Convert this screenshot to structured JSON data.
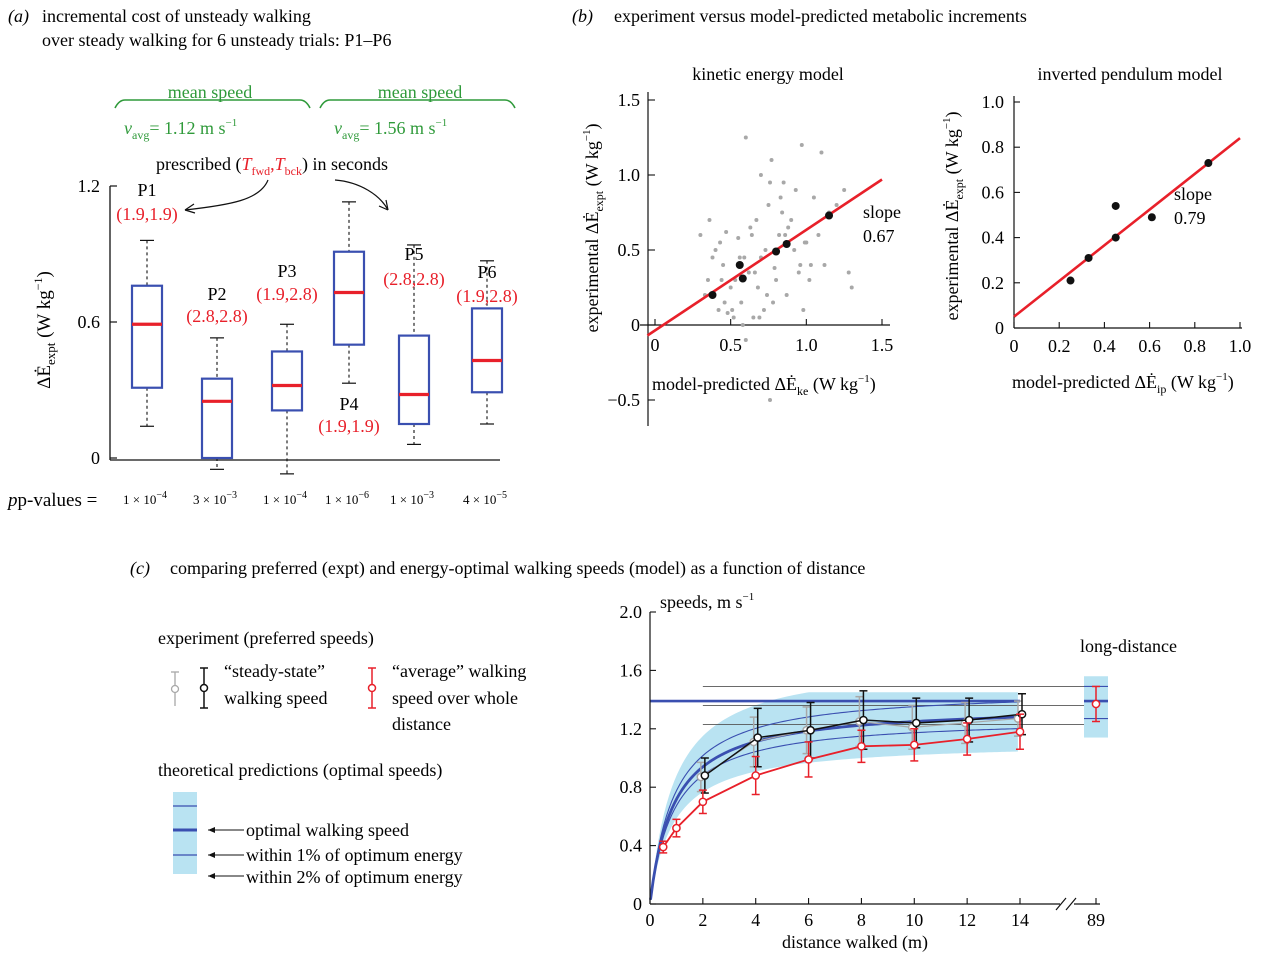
{
  "colors": {
    "red": "#e8202a",
    "blue": "#3a4fb0",
    "green": "#2f9a3a",
    "gray": "#a8a8a8",
    "black": "#111111",
    "lightblue": "#b9e3f2"
  },
  "panel_a": {
    "letter": "(a)",
    "title_line1": "incremental cost of unsteady walking",
    "title_line2": "over steady walking for 6 unsteady trials: P1–P6",
    "groups": [
      {
        "label": "mean speed",
        "vavg_value": "= 1.12 m s",
        "exp": "−1"
      },
      {
        "label": "mean speed",
        "vavg_value": "= 1.56 m s",
        "exp": "−1"
      }
    ],
    "prescribed_pre": "prescribed (",
    "prescribed_mid": ",",
    "prescribed_post": ") in seconds",
    "ylabel": "ΔĖ",
    "ylabel_sub": "expt",
    "ylabel_units": "(W kg",
    "ylabel_exp": "−1",
    "pvalues_label": "p-values =",
    "pvalues": [
      "1 × 10",
      "3 × 10",
      "1 × 10",
      "1 × 10",
      "1 × 10",
      "4 × 10"
    ],
    "pvalue_exps": [
      "−4",
      "−3",
      "−4",
      "−6",
      "−3",
      "−5"
    ]
  },
  "panel_b": {
    "letter": "(b)",
    "title": "experiment versus model-predicted metabolic increments",
    "left_title": "kinetic energy model",
    "right_title": "inverted pendulum model",
    "ylabel": "experimental ΔĖ",
    "ylabel_sub": "expt",
    "ylabel_units": "(W kg",
    "xlabel_left": "model-predicted ΔĖ",
    "xlabel_left_sub": "ke",
    "xlabel_right": "model-predicted ΔĖ",
    "xlabel_right_sub": "ip",
    "xlabel_units": "(W kg",
    "exp": "−1",
    "slope_label": "slope",
    "slope_left": "0.67",
    "slope_right": "0.79"
  },
  "panel_c": {
    "letter": "(c)",
    "title": "comparing preferred (expt) and energy-optimal walking speeds (model) as a function of distance",
    "legend_experiment": "experiment (preferred speeds)",
    "legend_steady_1": "“steady-state”",
    "legend_steady_2": "walking speed",
    "legend_avg_1": "“average” walking",
    "legend_avg_2": "speed over whole",
    "legend_avg_3": "distance",
    "legend_theory": "theoretical predictions (optimal speeds)",
    "legend_opt": "optimal walking speed",
    "legend_1pct": "within 1% of optimum energy",
    "legend_2pct": "within 2% of optimum energy",
    "ylabel": "speeds, m s",
    "ylabel_exp": "−1",
    "xlabel": "distance walked (m)",
    "long_distance": "long-distance"
  },
  "chart_data": [
    {
      "type": "box",
      "panel": "a",
      "categories": [
        "P1",
        "P2",
        "P3",
        "P4",
        "P5",
        "P6"
      ],
      "tick_labels": [
        "0",
        "0.6",
        "1.2"
      ],
      "ylim": [
        -0.1,
        1.2
      ],
      "boxes": [
        {
          "name": "P1",
          "params": "(1.9,1.9)",
          "whisker_low": 0.14,
          "q1": 0.31,
          "median": 0.59,
          "q3": 0.76,
          "whisker_high": 0.96
        },
        {
          "name": "P2",
          "params": "(2.8,2.8)",
          "whisker_low": -0.05,
          "q1": 0.0,
          "median": 0.25,
          "q3": 0.35,
          "whisker_high": 0.53
        },
        {
          "name": "P3",
          "params": "(1.9,2.8)",
          "whisker_low": -0.07,
          "q1": 0.21,
          "median": 0.32,
          "q3": 0.47,
          "whisker_high": 0.59
        },
        {
          "name": "P4",
          "params": "(1.9,1.9)",
          "whisker_low": 0.33,
          "q1": 0.5,
          "median": 0.73,
          "q3": 0.91,
          "whisker_high": 1.13
        },
        {
          "name": "P5",
          "params": "(2.8,2.8)",
          "whisker_low": 0.06,
          "q1": 0.15,
          "median": 0.28,
          "q3": 0.54,
          "whisker_high": 0.94
        },
        {
          "name": "P6",
          "params": "(1.9,2.8)",
          "whisker_low": 0.15,
          "q1": 0.29,
          "median": 0.43,
          "q3": 0.66,
          "whisker_high": 0.87
        }
      ]
    },
    {
      "type": "scatter",
      "panel": "b-left",
      "xlim": [
        -0.1,
        1.55
      ],
      "ylim": [
        -0.6,
        1.6
      ],
      "x_ticks": [
        "0",
        "0.5",
        "1.0",
        "1.5"
      ],
      "y_ticks": [
        "−0.5",
        "0",
        "0.5",
        "1.0",
        "1.5"
      ],
      "fit_line": {
        "x": [
          -0.05,
          1.5
        ],
        "y": [
          -0.07,
          0.97
        ]
      },
      "mean_points": {
        "x": [
          0.38,
          0.56,
          0.58,
          0.8,
          0.87,
          1.15
        ],
        "y": [
          0.2,
          0.4,
          0.31,
          0.49,
          0.54,
          0.73
        ]
      },
      "gray_points": {
        "x": [
          0.3,
          0.35,
          0.4,
          0.42,
          0.45,
          0.47,
          0.5,
          0.52,
          0.55,
          0.57,
          0.6,
          0.62,
          0.65,
          0.67,
          0.7,
          0.72,
          0.75,
          0.77,
          0.8,
          0.82,
          0.85,
          0.87,
          0.9,
          0.92,
          0.95,
          0.97,
          1.0,
          1.02,
          1.05,
          1.08,
          1.1,
          1.12,
          1.15,
          1.2,
          1.25,
          1.28,
          1.3,
          0.33,
          0.38,
          0.43,
          0.48,
          0.53,
          0.58,
          0.63,
          0.68,
          0.73,
          0.78,
          0.83,
          0.88,
          0.93,
          0.98,
          1.03,
          0.36,
          0.46,
          0.56,
          0.66,
          0.76,
          0.86,
          0.96,
          0.6,
          0.7,
          0.76,
          0.44,
          0.64,
          0.84,
          0.74,
          0.99,
          0.51,
          0.59,
          0.69,
          0.79
        ],
        "y": [
          0.6,
          0.3,
          0.5,
          0.1,
          0.4,
          0.62,
          0.25,
          0.05,
          0.58,
          0.15,
          1.25,
          0.35,
          0.05,
          0.7,
          0.45,
          0.1,
          0.8,
          1.1,
          0.3,
          0.6,
          0.95,
          0.2,
          0.7,
          0.5,
          0.35,
          1.2,
          0.55,
          0.3,
          0.85,
          0.6,
          1.15,
          0.4,
          0.75,
          0.8,
          0.9,
          0.35,
          0.25,
          0.2,
          0.45,
          0.55,
          0.08,
          0.3,
          0.0,
          0.65,
          0.25,
          0.5,
          0.15,
          0.85,
          0.65,
          0.9,
          0.1,
          0.4,
          0.7,
          0.15,
          0.45,
          0.35,
          0.95,
          0.6,
          0.4,
          -0.1,
          1.0,
          -0.5,
          0.3,
          0.6,
          0.75,
          0.2,
          0.55,
          0.1,
          0.45,
          0.05,
          0.38
        ]
      }
    },
    {
      "type": "scatter",
      "panel": "b-right",
      "xlim": [
        0,
        1.0
      ],
      "ylim": [
        0,
        1.0
      ],
      "x_ticks": [
        "0",
        "0.2",
        "0.4",
        "0.6",
        "0.8",
        "1.0"
      ],
      "y_ticks": [
        "0",
        "0.2",
        "0.4",
        "0.6",
        "0.8",
        "1.0"
      ],
      "fit_line": {
        "x": [
          0,
          1.0
        ],
        "y": [
          0.05,
          0.84
        ]
      },
      "points": {
        "x": [
          0.25,
          0.33,
          0.45,
          0.45,
          0.61,
          0.86
        ],
        "y": [
          0.21,
          0.31,
          0.4,
          0.54,
          0.49,
          0.73
        ]
      }
    },
    {
      "type": "line",
      "panel": "c",
      "xlabel": "distance walked (m)",
      "ylabel": "speeds, m s−1",
      "ylim": [
        0,
        2.0
      ],
      "x_ticks": [
        "0",
        "2",
        "4",
        "6",
        "8",
        "10",
        "12",
        "14",
        "89"
      ],
      "y_ticks": [
        "0",
        "0.4",
        "0.8",
        "1.2",
        "1.6",
        "2.0"
      ],
      "series": [
        {
          "name": "“average” walking speed over whole distance",
          "color": "#e8202a",
          "x": [
            0.5,
            1,
            2,
            4,
            6,
            8,
            10,
            12,
            14
          ],
          "y": [
            0.39,
            0.52,
            0.7,
            0.88,
            0.99,
            1.08,
            1.09,
            1.13,
            1.18
          ],
          "err": [
            0.04,
            0.06,
            0.08,
            0.13,
            0.12,
            0.11,
            0.11,
            0.11,
            0.12
          ]
        },
        {
          "name": "“steady-state” walking speed",
          "color": "#111111",
          "x": [
            2,
            4,
            6,
            8,
            10,
            12,
            14
          ],
          "y": [
            0.88,
            1.14,
            1.19,
            1.26,
            1.24,
            1.26,
            1.3
          ],
          "err": [
            0.12,
            0.2,
            0.19,
            0.2,
            0.17,
            0.15,
            0.14
          ]
        },
        {
          "name": "“steady-state” walking speed (gray)",
          "color": "#a8a8a8",
          "x": [
            2,
            4,
            6,
            8,
            10,
            12,
            14
          ],
          "y": [
            0.87,
            1.11,
            1.19,
            1.25,
            1.21,
            1.24,
            1.27
          ],
          "err": [
            0.1,
            0.17,
            0.16,
            0.17,
            0.15,
            0.14,
            0.12
          ]
        }
      ],
      "long_distance": {
        "x": 89,
        "y": 1.37,
        "err": 0.12
      },
      "long_distance_refs": [
        1.49,
        1.36,
        1.23
      ],
      "model_asymptote": 1.39
    }
  ]
}
